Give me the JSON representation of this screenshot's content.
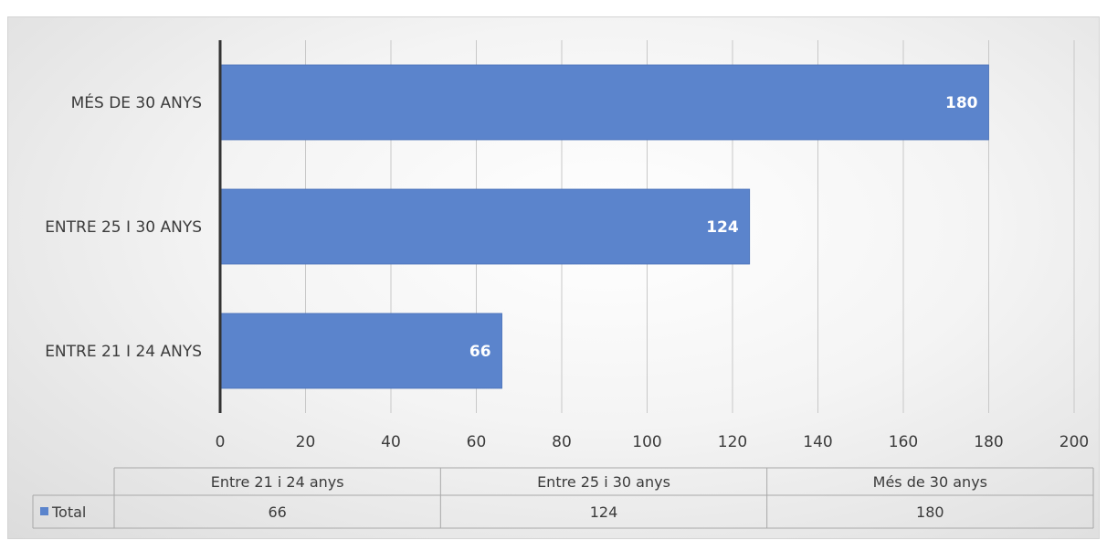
{
  "chart_data": {
    "type": "bar",
    "orientation": "horizontal",
    "categories": [
      "ENTRE 21 I 24 ANYS",
      "ENTRE 25 I 30 ANYS",
      "MÉS DE 30 ANYS"
    ],
    "series": [
      {
        "name": "Total",
        "values": [
          66,
          124,
          180
        ],
        "color": "#5b84cc"
      }
    ],
    "xlim": [
      0,
      200
    ],
    "x_ticks": [
      "0",
      "20",
      "40",
      "60",
      "80",
      "100",
      "120",
      "140",
      "160",
      "180",
      "200"
    ],
    "grid": "vertical",
    "data_labels": [
      "66",
      "124",
      "180"
    ],
    "title": "",
    "xlabel": "",
    "ylabel": "",
    "data_table": {
      "columns": [
        "Entre 21 i 24 anys",
        "Entre 25 i 30 anys",
        "Més de 30 anys"
      ],
      "rows": [
        {
          "label": "Total",
          "values": [
            "66",
            "124",
            "180"
          ]
        }
      ]
    }
  }
}
